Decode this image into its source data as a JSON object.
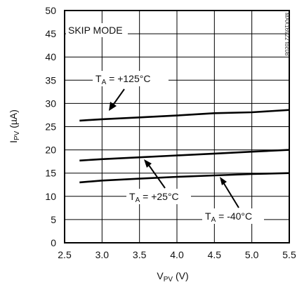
{
  "chart_data": {
    "type": "line",
    "xlabel": {
      "main": "V",
      "sub": "PV",
      "unit": " (V)"
    },
    "ylabel": {
      "main": "I",
      "sub": "PV",
      "unit": " (µA)"
    },
    "xlim": [
      2.5,
      5.5
    ],
    "ylim": [
      0,
      50
    ],
    "x_ticks": [
      2.5,
      3.0,
      3.5,
      4.0,
      4.5,
      5.0,
      5.5
    ],
    "x_tick_labels": [
      "2.5",
      "3.0",
      "3.5",
      "4.0",
      "4.5",
      "5.0",
      "5.5"
    ],
    "y_ticks": [
      0,
      5,
      10,
      15,
      20,
      25,
      30,
      35,
      40,
      45,
      50
    ],
    "y_tick_labels": [
      "0",
      "5",
      "10",
      "15",
      "20",
      "25",
      "30",
      "35",
      "40",
      "45",
      "50"
    ],
    "grid": true,
    "series": [
      {
        "name": "TA = +125°C",
        "x": [
          2.7,
          3.0,
          3.5,
          4.0,
          4.5,
          5.0,
          5.5
        ],
        "y": [
          26.3,
          26.6,
          27.0,
          27.4,
          27.9,
          28.1,
          28.6
        ]
      },
      {
        "name": "TA = +25°C",
        "x": [
          2.7,
          3.0,
          3.5,
          4.0,
          4.5,
          5.0,
          5.5
        ],
        "y": [
          17.7,
          18.0,
          18.4,
          18.8,
          19.2,
          19.6,
          20.0
        ]
      },
      {
        "name": "TA = -40°C",
        "x": [
          2.7,
          3.0,
          3.5,
          4.0,
          4.5,
          5.0,
          5.5
        ],
        "y": [
          13.0,
          13.4,
          13.8,
          14.2,
          14.5,
          14.8,
          15.0
        ]
      }
    ],
    "annotations": {
      "mode": "SKIP MODE",
      "t125": {
        "main": "T",
        "sub": "A",
        "rest": " = +125°C"
      },
      "t25": {
        "main": "T",
        "sub": "A",
        "rest": " = +25°C"
      },
      "tm40": {
        "main": "T",
        "sub": "A",
        "rest": " = -40°C"
      },
      "figure_id": "MAX16922 toc08"
    }
  }
}
